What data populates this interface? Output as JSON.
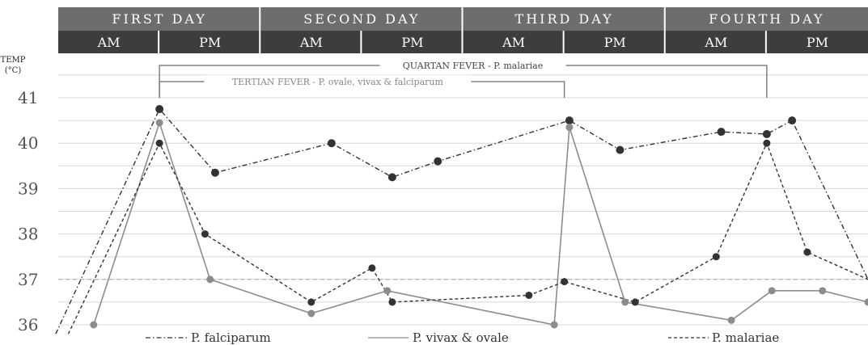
{
  "header": {
    "days": [
      "FIRST DAY",
      "SECOND DAY",
      "THIRD DAY",
      "FOURTH DAY"
    ],
    "halves": [
      "AM",
      "PM",
      "AM",
      "PM",
      "AM",
      "PM",
      "AM",
      "PM"
    ]
  },
  "colors": {
    "day_header": "#6d6d6d",
    "half_header": "#3d3d3d",
    "grid": "#d7d7d7",
    "reference_line": "#bbbbbb",
    "falciparum": "#333333",
    "vivax_ovale": "#8c8c8c",
    "malariae": "#333333",
    "bracket": "#808080"
  },
  "chart_data": {
    "type": "line",
    "ylabel": [
      "TEMP",
      "(°C)"
    ],
    "y_ticks": [
      36,
      37,
      38,
      39,
      40,
      41
    ],
    "ylim": [
      35.8,
      41.5
    ],
    "xlim": [
      0,
      16
    ],
    "x_unit": "half-days (AM/PM periods from start of first day)",
    "reference_line": 37,
    "grid": true,
    "legend_position": "bottom",
    "brackets": [
      {
        "name": "quartan",
        "label": "QUARTAN FEVER -  P. malariae",
        "x_start": 2.0,
        "x_end": 14.0
      },
      {
        "name": "tertian",
        "label": "TERTIAN FEVER -  P. ovale, vivax & falciparum",
        "x_start": 2.0,
        "x_end": 10.0
      }
    ],
    "series": [
      {
        "name": "P. falciparum",
        "style": "dashdot",
        "x": [
          0.4,
          2.0,
          3.1,
          5.4,
          6.6,
          7.5,
          10.1,
          11.1,
          13.1,
          14.0,
          14.5,
          16.0
        ],
        "y": [
          36.0,
          40.75,
          39.35,
          40.0,
          39.25,
          39.6,
          40.5,
          39.85,
          40.25,
          40.2,
          40.5,
          37.0
        ]
      },
      {
        "name": "P. vivax & ovale",
        "style": "solid",
        "x": [
          0.7,
          2.0,
          3.0,
          5.0,
          6.5,
          9.8,
          10.1,
          11.2,
          13.3,
          14.1,
          15.1,
          16.0
        ],
        "y": [
          36.0,
          40.45,
          37.0,
          36.25,
          36.75,
          36.0,
          40.35,
          36.5,
          36.1,
          36.75,
          36.75,
          36.5
        ]
      },
      {
        "name": "P. malariae",
        "style": "dashed",
        "x": [
          0.6,
          2.0,
          2.9,
          5.0,
          6.2,
          6.6,
          9.3,
          10.0,
          11.4,
          13.0,
          14.0,
          14.8,
          16.0
        ],
        "y": [
          36.0,
          40.0,
          38.0,
          36.5,
          37.25,
          36.5,
          36.65,
          36.95,
          36.5,
          37.5,
          40.0,
          37.6,
          37.0
        ]
      }
    ]
  }
}
